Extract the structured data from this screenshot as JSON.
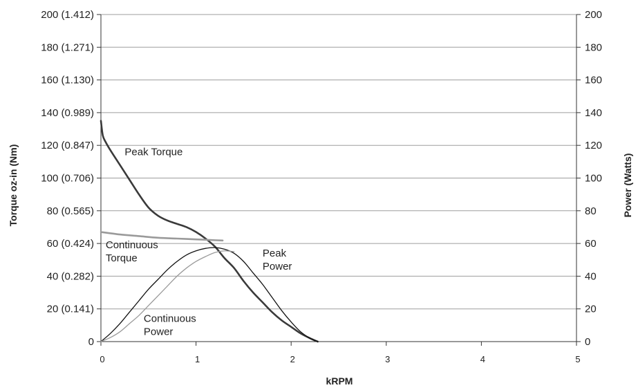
{
  "chart_data": {
    "type": "line",
    "x_axis": {
      "label": "kRPM",
      "ticks": [
        "0",
        "1",
        "2",
        "3",
        "4",
        "5"
      ],
      "range": [
        0,
        5
      ]
    },
    "y_axis_left": {
      "label": "Torque oz-in (Nm)",
      "range": [
        0,
        200
      ],
      "ticks": [
        "0",
        "20 (0.141)",
        "40 (0.282)",
        "60 (0.424)",
        "80 (0.565)",
        "100 (0.706)",
        "120 (0.847)",
        "140 (0.989)",
        "160 (1.130)",
        "180 (1.271)",
        "200 (1.412)"
      ]
    },
    "y_axis_right": {
      "label": "Power (Watts)",
      "range": [
        0,
        200
      ],
      "ticks": [
        "0",
        "20",
        "40",
        "60",
        "80",
        "100",
        "120",
        "140",
        "160",
        "180",
        "200"
      ]
    },
    "grid": true,
    "series": [
      {
        "key": "peak_torque",
        "axis": "left",
        "color": "#3a3a3a",
        "x": [
          0,
          0.02,
          0.05,
          0.1,
          0.2,
          0.3,
          0.4,
          0.5,
          0.6,
          0.7,
          0.8,
          0.9,
          1.0,
          1.1,
          1.2,
          1.3,
          1.4,
          1.5,
          1.6,
          1.7,
          1.8,
          1.9,
          2.0,
          2.1,
          2.2,
          2.28
        ],
        "y": [
          135,
          126,
          122,
          117,
          108,
          99,
          90,
          82,
          77,
          74,
          72,
          70,
          67,
          63,
          58,
          51,
          45,
          37,
          30,
          24,
          18,
          13,
          9,
          5,
          2,
          0
        ]
      },
      {
        "key": "continuous_torque",
        "axis": "left",
        "color": "#9a9a9a",
        "x": [
          0,
          0.2,
          0.4,
          0.6,
          0.8,
          1.0,
          1.2,
          1.28
        ],
        "y": [
          67,
          65.5,
          64.5,
          63.5,
          63,
          62.5,
          62,
          61.8
        ]
      },
      {
        "key": "peak_power",
        "axis": "right",
        "color": "#111111",
        "x": [
          0,
          0.1,
          0.2,
          0.3,
          0.4,
          0.5,
          0.6,
          0.7,
          0.8,
          0.9,
          1.0,
          1.1,
          1.2,
          1.3,
          1.4,
          1.5,
          1.6,
          1.7,
          1.8,
          1.9,
          2.0,
          2.1,
          2.2,
          2.28
        ],
        "y": [
          0,
          5,
          11,
          18,
          25,
          32,
          38,
          44,
          49,
          53,
          55.5,
          57,
          57.5,
          56.5,
          54,
          49,
          42,
          35,
          27,
          19,
          12,
          6,
          2,
          0
        ]
      },
      {
        "key": "continuous_power",
        "axis": "right",
        "color": "#9a9a9a",
        "x": [
          0,
          0.1,
          0.2,
          0.3,
          0.4,
          0.5,
          0.6,
          0.7,
          0.8,
          0.9,
          1.0,
          1.1,
          1.2,
          1.3,
          1.4
        ],
        "y": [
          0,
          2.5,
          6,
          11,
          16,
          22,
          28,
          34,
          40,
          45,
          49,
          52,
          54.5,
          55.5,
          55
        ]
      }
    ],
    "annotations": [
      {
        "key": "peak_torque",
        "lines": [
          "Peak Torque"
        ],
        "x": 0.25,
        "y": 114
      },
      {
        "key": "continuous_torque",
        "lines": [
          "Continuous",
          "Torque"
        ],
        "x": 0.05,
        "y": 57
      },
      {
        "key": "peak_power",
        "lines": [
          "Peak",
          "Power"
        ],
        "x": 1.7,
        "y": 52
      },
      {
        "key": "continuous_power",
        "lines": [
          "Continuous",
          "Power"
        ],
        "x": 0.45,
        "y": 12
      }
    ]
  }
}
